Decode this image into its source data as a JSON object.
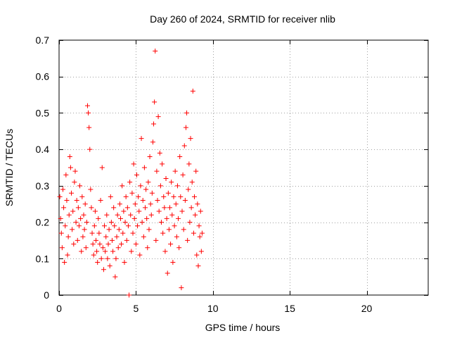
{
  "chart_data": {
    "type": "scatter",
    "title": "Day 260 of 2024, SRMTID for receiver nlib",
    "xlabel": "GPS time / hours",
    "ylabel": "SRMTID / TECUs",
    "xlim": [
      0,
      24
    ],
    "ylim": [
      0,
      0.7
    ],
    "xticks": [
      0,
      5,
      10,
      15,
      20
    ],
    "yticks": [
      0,
      0.1,
      0.2,
      0.3,
      0.4,
      0.5,
      0.6,
      0.7
    ],
    "xtick_labels": [
      "0",
      "5",
      "10",
      "15",
      "20"
    ],
    "ytick_labels": [
      "0",
      "0.1",
      "0.2",
      "0.3",
      "0.4",
      "0.5",
      "0.6",
      "0.7"
    ],
    "grid": true,
    "marker": "plus",
    "series": [
      {
        "name": "SRMTID",
        "color": "#ff0000",
        "points": [
          [
            0.05,
            0.27
          ],
          [
            0.1,
            0.21
          ],
          [
            0.15,
            0.17
          ],
          [
            0.2,
            0.13
          ],
          [
            0.25,
            0.29
          ],
          [
            0.3,
            0.24
          ],
          [
            0.35,
            0.09
          ],
          [
            0.4,
            0.19
          ],
          [
            0.45,
            0.33
          ],
          [
            0.5,
            0.26
          ],
          [
            0.55,
            0.11
          ],
          [
            0.6,
            0.16
          ],
          [
            0.65,
            0.22
          ],
          [
            0.7,
            0.38
          ],
          [
            0.75,
            0.35
          ],
          [
            0.8,
            0.28
          ],
          [
            0.85,
            0.18
          ],
          [
            0.9,
            0.23
          ],
          [
            0.95,
            0.14
          ],
          [
            1.0,
            0.31
          ],
          [
            1.05,
            0.34
          ],
          [
            1.1,
            0.2
          ],
          [
            1.15,
            0.26
          ],
          [
            1.2,
            0.15
          ],
          [
            1.25,
            0.24
          ],
          [
            1.3,
            0.19
          ],
          [
            1.35,
            0.3
          ],
          [
            1.4,
            0.21
          ],
          [
            1.45,
            0.12
          ],
          [
            1.5,
            0.27
          ],
          [
            1.55,
            0.16
          ],
          [
            1.6,
            0.22
          ],
          [
            1.65,
            0.18
          ],
          [
            1.7,
            0.25
          ],
          [
            1.75,
            0.13
          ],
          [
            1.8,
            0.2
          ],
          [
            1.85,
            0.52
          ],
          [
            1.9,
            0.5
          ],
          [
            1.95,
            0.46
          ],
          [
            2.0,
            0.4
          ],
          [
            2.05,
            0.29
          ],
          [
            2.1,
            0.24
          ],
          [
            2.15,
            0.17
          ],
          [
            2.2,
            0.14
          ],
          [
            2.25,
            0.11
          ],
          [
            2.3,
            0.19
          ],
          [
            2.35,
            0.23
          ],
          [
            2.4,
            0.15
          ],
          [
            2.45,
            0.12
          ],
          [
            2.5,
            0.09
          ],
          [
            2.55,
            0.21
          ],
          [
            2.6,
            0.17
          ],
          [
            2.65,
            0.14
          ],
          [
            2.7,
            0.26
          ],
          [
            2.75,
            0.1
          ],
          [
            2.8,
            0.35
          ],
          [
            2.85,
            0.13
          ],
          [
            2.9,
            0.07
          ],
          [
            2.95,
            0.19
          ],
          [
            3.0,
            0.12
          ],
          [
            3.05,
            0.16
          ],
          [
            3.1,
            0.22
          ],
          [
            3.15,
            0.1
          ],
          [
            3.2,
            0.14
          ],
          [
            3.25,
            0.18
          ],
          [
            3.3,
            0.08
          ],
          [
            3.35,
            0.27
          ],
          [
            3.4,
            0.2
          ],
          [
            3.45,
            0.15
          ],
          [
            3.5,
            0.12
          ],
          [
            3.55,
            0.24
          ],
          [
            3.6,
            0.19
          ],
          [
            3.65,
            0.05
          ],
          [
            3.7,
            0.1
          ],
          [
            3.75,
            0.16
          ],
          [
            3.8,
            0.22
          ],
          [
            3.85,
            0.13
          ],
          [
            3.9,
            0.18
          ],
          [
            3.95,
            0.25
          ],
          [
            4.0,
            0.21
          ],
          [
            4.05,
            0.14
          ],
          [
            4.1,
            0.3
          ],
          [
            4.15,
            0.17
          ],
          [
            4.2,
            0.23
          ],
          [
            4.25,
            0.09
          ],
          [
            4.3,
            0.2
          ],
          [
            4.35,
            0.27
          ],
          [
            4.4,
            0.15
          ],
          [
            4.45,
            0.24
          ],
          [
            4.5,
            0.19
          ],
          [
            4.55,
            0.0
          ],
          [
            4.6,
            0.31
          ],
          [
            4.65,
            0.22
          ],
          [
            4.7,
            0.12
          ],
          [
            4.75,
            0.28
          ],
          [
            4.8,
            0.17
          ],
          [
            4.85,
            0.36
          ],
          [
            4.9,
            0.21
          ],
          [
            4.95,
            0.25
          ],
          [
            5.0,
            0.14
          ],
          [
            5.05,
            0.33
          ],
          [
            5.1,
            0.19
          ],
          [
            5.15,
            0.27
          ],
          [
            5.2,
            0.23
          ],
          [
            5.25,
            0.11
          ],
          [
            5.3,
            0.3
          ],
          [
            5.35,
            0.43
          ],
          [
            5.4,
            0.2
          ],
          [
            5.45,
            0.26
          ],
          [
            5.5,
            0.16
          ],
          [
            5.55,
            0.35
          ],
          [
            5.6,
            0.24
          ],
          [
            5.65,
            0.29
          ],
          [
            5.7,
            0.21
          ],
          [
            5.75,
            0.13
          ],
          [
            5.8,
            0.31
          ],
          [
            5.85,
            0.18
          ],
          [
            5.9,
            0.38
          ],
          [
            5.95,
            0.25
          ],
          [
            6.0,
            0.22
          ],
          [
            6.05,
            0.28
          ],
          [
            6.1,
            0.42
          ],
          [
            6.15,
            0.47
          ],
          [
            6.2,
            0.53
          ],
          [
            6.25,
            0.67
          ],
          [
            6.3,
            0.15
          ],
          [
            6.35,
            0.34
          ],
          [
            6.4,
            0.26
          ],
          [
            6.45,
            0.49
          ],
          [
            6.5,
            0.23
          ],
          [
            6.55,
            0.39
          ],
          [
            6.6,
            0.3
          ],
          [
            6.65,
            0.2
          ],
          [
            6.7,
            0.36
          ],
          [
            6.75,
            0.17
          ],
          [
            6.8,
            0.27
          ],
          [
            6.85,
            0.24
          ],
          [
            6.9,
            0.12
          ],
          [
            6.95,
            0.32
          ],
          [
            7.0,
            0.21
          ],
          [
            7.05,
            0.06
          ],
          [
            7.1,
            0.28
          ],
          [
            7.15,
            0.18
          ],
          [
            7.2,
            0.24
          ],
          [
            7.25,
            0.14
          ],
          [
            7.3,
            0.31
          ],
          [
            7.35,
            0.22
          ],
          [
            7.4,
            0.09
          ],
          [
            7.45,
            0.27
          ],
          [
            7.5,
            0.19
          ],
          [
            7.55,
            0.34
          ],
          [
            7.6,
            0.25
          ],
          [
            7.65,
            0.16
          ],
          [
            7.7,
            0.3
          ],
          [
            7.75,
            0.21
          ],
          [
            7.8,
            0.13
          ],
          [
            7.85,
            0.38
          ],
          [
            7.9,
            0.27
          ],
          [
            7.95,
            0.02
          ],
          [
            8.0,
            0.23
          ],
          [
            8.05,
            0.33
          ],
          [
            8.1,
            0.18
          ],
          [
            8.15,
            0.41
          ],
          [
            8.2,
            0.26
          ],
          [
            8.25,
            0.46
          ],
          [
            8.3,
            0.5
          ],
          [
            8.35,
            0.15
          ],
          [
            8.4,
            0.29
          ],
          [
            8.45,
            0.36
          ],
          [
            8.5,
            0.2
          ],
          [
            8.55,
            0.43
          ],
          [
            8.6,
            0.24
          ],
          [
            8.65,
            0.31
          ],
          [
            8.7,
            0.56
          ],
          [
            8.75,
            0.17
          ],
          [
            8.8,
            0.27
          ],
          [
            8.85,
            0.22
          ],
          [
            8.9,
            0.34
          ],
          [
            8.95,
            0.11
          ],
          [
            9.0,
            0.25
          ],
          [
            9.05,
            0.08
          ],
          [
            9.1,
            0.19
          ],
          [
            9.15,
            0.16
          ],
          [
            9.2,
            0.23
          ],
          [
            9.25,
            0.12
          ],
          [
            9.3,
            0.17
          ]
        ]
      }
    ]
  }
}
